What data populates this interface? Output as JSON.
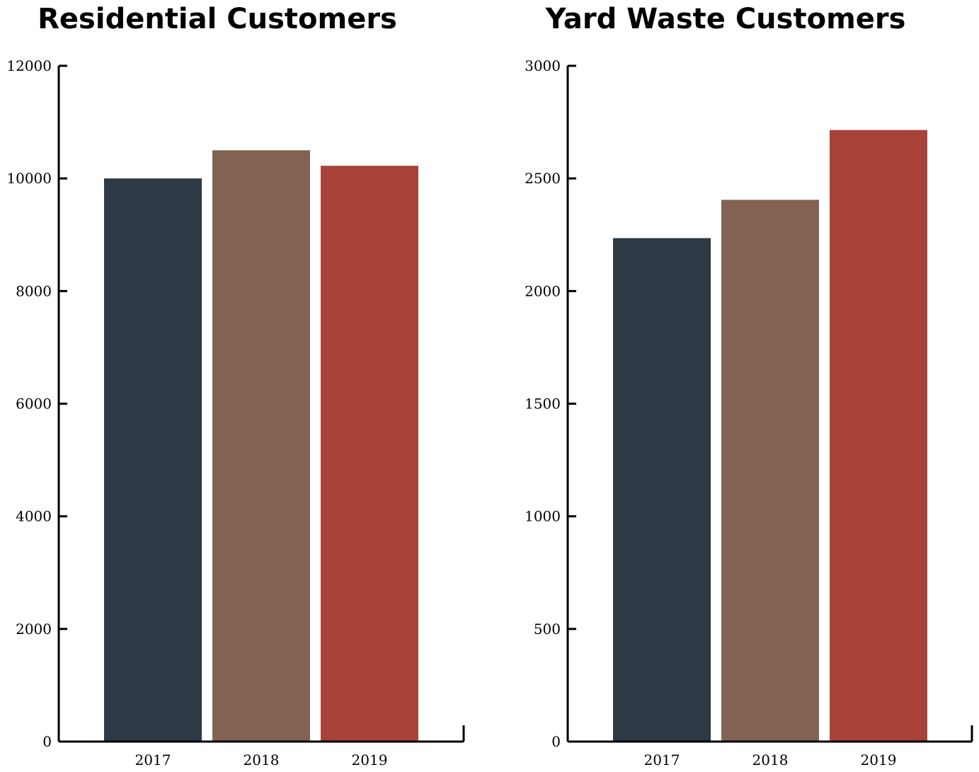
{
  "chart_data": [
    {
      "type": "bar",
      "title": "Residential Customers",
      "categories": [
        "2017",
        "2018",
        "2019"
      ],
      "values": [
        10000,
        10500,
        10225
      ],
      "colors": [
        "#2d3944",
        "#826353",
        "#a74339"
      ],
      "ylim": [
        0,
        12000
      ],
      "yticks": [
        "0",
        "2000",
        "4000",
        "6000",
        "8000",
        "10000",
        "12000"
      ],
      "xlabel": "",
      "ylabel": "",
      "grid": false,
      "legend": "none"
    },
    {
      "type": "bar",
      "title": "Yard Waste Customers",
      "categories": [
        "2017",
        "2018",
        "2019"
      ],
      "values": [
        2235,
        2405,
        2715
      ],
      "colors": [
        "#2d3944",
        "#826353",
        "#a74339"
      ],
      "ylim": [
        0,
        3000
      ],
      "yticks": [
        "0",
        "500",
        "1000",
        "1500",
        "2000",
        "2500",
        "3000"
      ],
      "xlabel": "",
      "ylabel": "",
      "grid": false,
      "legend": "none"
    }
  ]
}
